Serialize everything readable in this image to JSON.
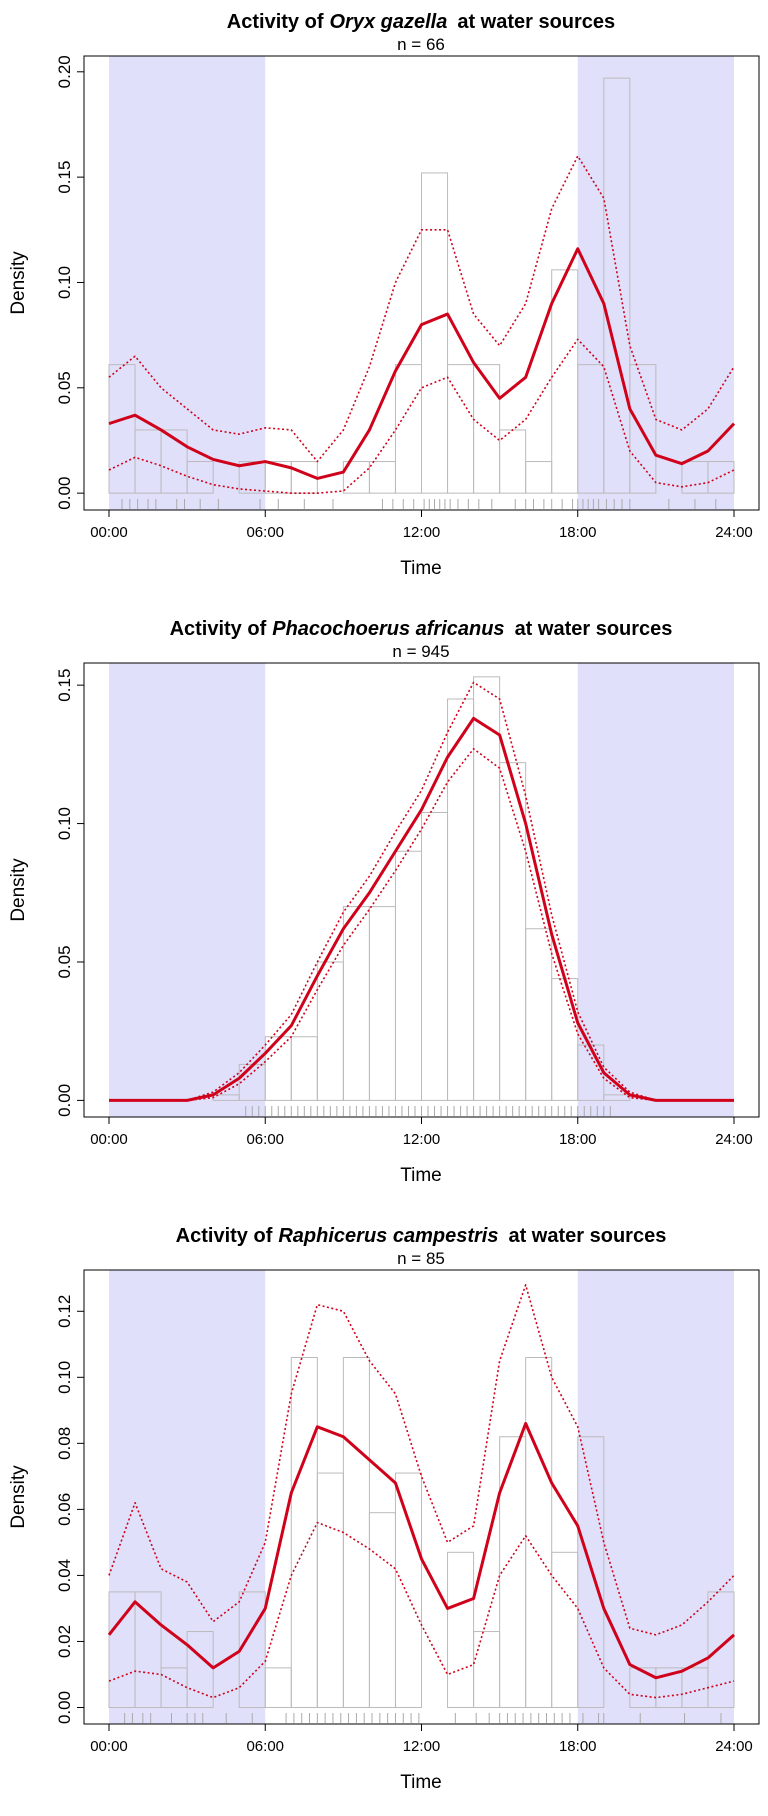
{
  "chart_data": [
    {
      "type": "density",
      "title": "Activity of",
      "species": "Oryx gazella",
      "title_suffix": "at water sources",
      "subtitle": "n = 66",
      "xlabel": "Time",
      "ylabel": "Density",
      "shade_color": "#e0e0fb",
      "line_color": "#d0021b",
      "hist_color": "#bbbbbb",
      "rug_color": "#aaaaaa",
      "shaded": [
        [
          0,
          6
        ],
        [
          18,
          24
        ]
      ],
      "xlim": [
        -0.96,
        24.96
      ],
      "ylim": [
        -0.008,
        0.2075
      ],
      "xticks": [
        {
          "value": 0,
          "label": "00:00"
        },
        {
          "value": 6,
          "label": "06:00"
        },
        {
          "value": 12,
          "label": "12:00"
        },
        {
          "value": 18,
          "label": "18:00"
        },
        {
          "value": 24,
          "label": "24:00"
        }
      ],
      "yticks": [
        {
          "value": 0,
          "label": "0.00"
        },
        {
          "value": 0.05,
          "label": "0.05"
        },
        {
          "value": 0.1,
          "label": "0.10"
        },
        {
          "value": 0.15,
          "label": "0.15"
        },
        {
          "value": 0.2,
          "label": "0.20"
        }
      ],
      "bins": [
        0,
        1,
        2,
        3,
        4,
        5,
        6,
        7,
        8,
        9,
        10,
        11,
        12,
        13,
        14,
        15,
        16,
        17,
        18,
        19,
        20,
        21,
        22,
        23,
        24
      ],
      "hist_values": [
        0.061,
        0.03,
        0.03,
        0.015,
        0,
        0.015,
        0.015,
        0.015,
        0,
        0.015,
        0.015,
        0.061,
        0.152,
        0.061,
        0.061,
        0.03,
        0.015,
        0.106,
        0.061,
        0.197,
        0.061,
        0,
        0.015,
        0.015
      ],
      "x": [
        0,
        1,
        2,
        3,
        4,
        5,
        6,
        7,
        8,
        9,
        10,
        11,
        12,
        13,
        14,
        15,
        16,
        17,
        18,
        19,
        20,
        21,
        22,
        23,
        24
      ],
      "density": [
        0.033,
        0.037,
        0.03,
        0.022,
        0.016,
        0.013,
        0.015,
        0.012,
        0.007,
        0.01,
        0.03,
        0.058,
        0.08,
        0.085,
        0.062,
        0.045,
        0.055,
        0.09,
        0.116,
        0.09,
        0.04,
        0.018,
        0.014,
        0.02,
        0.033
      ],
      "upper": [
        0.055,
        0.065,
        0.05,
        0.04,
        0.03,
        0.028,
        0.031,
        0.03,
        0.015,
        0.03,
        0.06,
        0.1,
        0.125,
        0.125,
        0.085,
        0.07,
        0.09,
        0.135,
        0.16,
        0.14,
        0.07,
        0.035,
        0.03,
        0.04,
        0.06
      ],
      "lower": [
        0.011,
        0.017,
        0.013,
        0.008,
        0.004,
        0.002,
        0.001,
        0,
        0,
        0.001,
        0.012,
        0.03,
        0.05,
        0.055,
        0.035,
        0.025,
        0.035,
        0.055,
        0.073,
        0.06,
        0.02,
        0.005,
        0.003,
        0.005,
        0.011
      ],
      "rug": [
        0.5,
        0.8,
        1.1,
        1.5,
        1.8,
        2.6,
        2.9,
        3.5,
        4.2,
        5.8,
        6.5,
        7.5,
        8.6,
        10.5,
        10.9,
        11.3,
        11.7,
        12.1,
        12.3,
        12.5,
        12.7,
        12.9,
        13.1,
        13.4,
        13.8,
        14.2,
        14.7,
        15.6,
        16.0,
        16.3,
        16.7,
        17.0,
        17.4,
        17.8,
        18.0,
        18.2,
        18.4,
        18.6,
        18.8,
        19.1,
        19.4,
        19.7,
        20.0,
        21.5,
        22.5,
        23.3
      ]
    },
    {
      "type": "density",
      "title": "Activity of",
      "species": "Phacochoerus africanus",
      "title_suffix": "at water sources",
      "subtitle": "n = 945",
      "xlabel": "Time",
      "ylabel": "Density",
      "shade_color": "#e0e0fb",
      "line_color": "#d0021b",
      "hist_color": "#bbbbbb",
      "rug_color": "#aaaaaa",
      "shaded": [
        [
          0,
          6
        ],
        [
          18,
          24
        ]
      ],
      "xlim": [
        -0.96,
        24.96
      ],
      "ylim": [
        -0.006,
        0.158
      ],
      "xticks": [
        {
          "value": 0,
          "label": "00:00"
        },
        {
          "value": 6,
          "label": "06:00"
        },
        {
          "value": 12,
          "label": "12:00"
        },
        {
          "value": 18,
          "label": "18:00"
        },
        {
          "value": 24,
          "label": "24:00"
        }
      ],
      "yticks": [
        {
          "value": 0,
          "label": "0.00"
        },
        {
          "value": 0.05,
          "label": "0.05"
        },
        {
          "value": 0.1,
          "label": "0.10"
        },
        {
          "value": 0.15,
          "label": "0.15"
        }
      ],
      "bins": [
        0,
        1,
        2,
        3,
        4,
        5,
        6,
        7,
        8,
        9,
        10,
        11,
        12,
        13,
        14,
        15,
        16,
        17,
        18,
        19,
        20,
        21,
        22,
        23,
        24
      ],
      "hist_values": [
        0,
        0,
        0,
        0,
        0.002,
        0.013,
        0.023,
        0.023,
        0.05,
        0.07,
        0.07,
        0.09,
        0.104,
        0.145,
        0.153,
        0.122,
        0.062,
        0.044,
        0.02,
        0.002,
        0,
        0,
        0,
        0
      ],
      "x": [
        0,
        1,
        2,
        3,
        4,
        5,
        6,
        7,
        8,
        9,
        10,
        11,
        12,
        13,
        14,
        15,
        16,
        17,
        18,
        19,
        20,
        21,
        22,
        23,
        24
      ],
      "density": [
        0,
        0,
        0,
        0,
        0.002,
        0.008,
        0.017,
        0.027,
        0.045,
        0.062,
        0.075,
        0.09,
        0.105,
        0.124,
        0.138,
        0.132,
        0.1,
        0.06,
        0.028,
        0.01,
        0.002,
        0,
        0,
        0,
        0
      ],
      "upper": [
        0,
        0,
        0,
        0,
        0.003,
        0.01,
        0.02,
        0.031,
        0.05,
        0.068,
        0.081,
        0.097,
        0.112,
        0.133,
        0.151,
        0.145,
        0.11,
        0.067,
        0.032,
        0.012,
        0.003,
        0,
        0,
        0,
        0
      ],
      "lower": [
        0,
        0,
        0,
        0,
        0.001,
        0.006,
        0.014,
        0.023,
        0.04,
        0.056,
        0.069,
        0.083,
        0.098,
        0.115,
        0.127,
        0.12,
        0.09,
        0.053,
        0.024,
        0.008,
        0.001,
        0,
        0,
        0,
        0
      ],
      "rug": [
        5.25,
        5.5,
        5.75,
        6,
        6.25,
        6.5,
        6.75,
        7,
        7.25,
        7.5,
        7.75,
        8,
        8.25,
        8.5,
        8.75,
        9,
        9.25,
        9.5,
        9.75,
        10,
        10.25,
        10.5,
        10.75,
        11,
        11.25,
        11.5,
        11.75,
        12,
        12.25,
        12.5,
        12.75,
        13,
        13.25,
        13.5,
        13.75,
        14,
        14.25,
        14.5,
        14.75,
        15,
        15.25,
        15.5,
        15.75,
        16,
        16.25,
        16.5,
        16.75,
        17,
        17.25,
        17.5,
        17.75,
        18,
        18.25,
        18.5,
        18.75,
        19,
        19.25
      ]
    },
    {
      "type": "density",
      "title": "Activity of",
      "species": "Raphicerus campestris",
      "title_suffix": "at water sources",
      "subtitle": "n = 85",
      "xlabel": "Time",
      "ylabel": "Density",
      "shade_color": "#e0e0fb",
      "line_color": "#d0021b",
      "hist_color": "#bbbbbb",
      "rug_color": "#aaaaaa",
      "shaded": [
        [
          0,
          6
        ],
        [
          18,
          24
        ]
      ],
      "xlim": [
        -0.96,
        24.96
      ],
      "ylim": [
        -0.005,
        0.1325
      ],
      "xticks": [
        {
          "value": 0,
          "label": "00:00"
        },
        {
          "value": 6,
          "label": "06:00"
        },
        {
          "value": 12,
          "label": "12:00"
        },
        {
          "value": 18,
          "label": "18:00"
        },
        {
          "value": 24,
          "label": "24:00"
        }
      ],
      "yticks": [
        {
          "value": 0,
          "label": "0.00"
        },
        {
          "value": 0.02,
          "label": "0.02"
        },
        {
          "value": 0.04,
          "label": "0.04"
        },
        {
          "value": 0.06,
          "label": "0.06"
        },
        {
          "value": 0.08,
          "label": "0.08"
        },
        {
          "value": 0.1,
          "label": "0.10"
        },
        {
          "value": 0.12,
          "label": "0.12"
        }
      ],
      "bins": [
        0,
        1,
        2,
        3,
        4,
        5,
        6,
        7,
        8,
        9,
        10,
        11,
        12,
        13,
        14,
        15,
        16,
        17,
        18,
        19,
        20,
        21,
        22,
        23,
        24
      ],
      "hist_values": [
        0.035,
        0.035,
        0.012,
        0.023,
        0,
        0.035,
        0.012,
        0.106,
        0.071,
        0.106,
        0.059,
        0.071,
        0,
        0.047,
        0.023,
        0.082,
        0.106,
        0.047,
        0.082,
        0,
        0.012,
        0.012,
        0.012,
        0.035
      ],
      "x": [
        0,
        1,
        2,
        3,
        4,
        5,
        6,
        7,
        8,
        9,
        10,
        11,
        12,
        13,
        14,
        15,
        16,
        17,
        18,
        19,
        20,
        21,
        22,
        23,
        24
      ],
      "density": [
        0.022,
        0.032,
        0.025,
        0.019,
        0.012,
        0.017,
        0.03,
        0.065,
        0.085,
        0.082,
        0.075,
        0.068,
        0.045,
        0.03,
        0.033,
        0.065,
        0.086,
        0.068,
        0.055,
        0.03,
        0.013,
        0.009,
        0.011,
        0.015,
        0.022
      ],
      "upper": [
        0.04,
        0.062,
        0.042,
        0.038,
        0.026,
        0.032,
        0.05,
        0.095,
        0.122,
        0.12,
        0.105,
        0.095,
        0.07,
        0.05,
        0.055,
        0.105,
        0.128,
        0.1,
        0.085,
        0.05,
        0.024,
        0.022,
        0.025,
        0.032,
        0.04
      ],
      "lower": [
        0.008,
        0.011,
        0.01,
        0.006,
        0.003,
        0.006,
        0.014,
        0.04,
        0.056,
        0.053,
        0.048,
        0.042,
        0.025,
        0.01,
        0.013,
        0.04,
        0.052,
        0.04,
        0.03,
        0.012,
        0.004,
        0.003,
        0.004,
        0.006,
        0.008
      ],
      "rug": [
        0.6,
        0.9,
        1.3,
        1.6,
        2.4,
        3.0,
        3.3,
        3.6,
        4.5,
        5.5,
        6.8,
        7.1,
        7.4,
        7.7,
        8.0,
        8.3,
        8.6,
        8.9,
        9.2,
        9.5,
        9.8,
        10.1,
        10.4,
        10.7,
        11.0,
        11.3,
        11.6,
        11.9,
        13.3,
        14.1,
        14.6,
        15.0,
        15.3,
        15.6,
        15.9,
        16.2,
        16.5,
        16.8,
        17.1,
        17.4,
        17.7,
        18.2,
        18.8,
        19.0,
        20.4,
        22.1,
        23.5
      ]
    }
  ]
}
